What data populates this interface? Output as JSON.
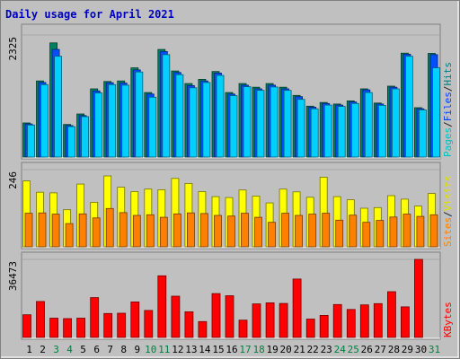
{
  "chart_data": {
    "type": "bar",
    "title": "Daily usage for April 2021",
    "days": [
      "1",
      "2",
      "3",
      "4",
      "5",
      "6",
      "7",
      "8",
      "9",
      "10",
      "11",
      "12",
      "13",
      "14",
      "15",
      "16",
      "17",
      "18",
      "19",
      "20",
      "21",
      "22",
      "23",
      "24",
      "25",
      "26",
      "27",
      "28",
      "29",
      "30",
      "31"
    ],
    "weekend_days": [
      "3",
      "4",
      "10",
      "11",
      "17",
      "18",
      "24",
      "25",
      "31"
    ],
    "panels": [
      {
        "id": "hits-panel",
        "ytick": "2325",
        "ymax": 2325,
        "legend": [
          {
            "label": "Pages",
            "color": "#00c0c0"
          },
          {
            "label": "/",
            "color": "#202020"
          },
          {
            "label": "Files",
            "color": "#0040ff"
          },
          {
            "label": "/",
            "color": "#202020"
          },
          {
            "label": "Hits",
            "color": "#008080"
          }
        ],
        "series": [
          {
            "name": "Hits",
            "color": "#008060",
            "values": [
              650,
              1450,
              2175,
              620,
              820,
              1300,
              1440,
              1450,
              1700,
              1230,
              2050,
              1640,
              1400,
              1480,
              1630,
              1230,
              1400,
              1330,
              1400,
              1330,
              1175,
              970,
              1040,
              1010,
              1070,
              1300,
              1030,
              1350,
              1980,
              940,
              1975
            ]
          },
          {
            "name": "Files",
            "color": "#0050ff",
            "values": [
              630,
              1420,
              2050,
              600,
              790,
              1260,
              1415,
              1410,
              1660,
              1200,
              2010,
              1610,
              1360,
              1450,
              1600,
              1200,
              1370,
              1300,
              1370,
              1300,
              1150,
              950,
              1020,
              990,
              1050,
              1280,
              1010,
              1330,
              1960,
              920,
              1950
            ]
          },
          {
            "name": "Pages",
            "color": "#00d0ff",
            "values": [
              610,
              1380,
              1920,
              580,
              770,
              1220,
              1380,
              1370,
              1620,
              1140,
              1950,
              1570,
              1320,
              1420,
              1555,
              1170,
              1340,
              1270,
              1335,
              1270,
              1100,
              920,
              990,
              965,
              1020,
              1230,
              985,
              1300,
              1920,
              900,
              1700
            ]
          }
        ]
      },
      {
        "id": "visits-panel",
        "ytick": "246",
        "ymax": 246,
        "legend": [
          {
            "label": "Sites",
            "color": "#ff8000"
          },
          {
            "label": "/",
            "color": "#202020"
          },
          {
            "label": "Visits",
            "color": "#e0e000"
          }
        ],
        "series": [
          {
            "name": "Visits",
            "color": "#ffff00",
            "values": [
              210,
              174,
              172,
              118,
              200,
              142,
              226,
              190,
              176,
              184,
              182,
              218,
              202,
              176,
              160,
              157,
              181,
              162,
              140,
              184,
              175,
              158,
              222,
              160,
              150,
              123,
              125,
              163,
              152,
              130,
              170
            ]
          },
          {
            "name": "Sites",
            "color": "#ff8000",
            "values": [
              107,
              108,
              104,
              74,
              105,
              92,
              122,
              109,
              100,
              102,
              94,
              105,
              108,
              106,
              100,
              98,
              107,
              94,
              78,
              107,
              100,
              104,
              107,
              85,
              101,
              78,
              84,
              95,
              104,
              97,
              102
            ]
          }
        ]
      },
      {
        "id": "kbytes-panel",
        "ytick": "36473",
        "ymax": 36473,
        "legend": [
          {
            "label": "KBytes",
            "color": "#ff0000"
          }
        ],
        "series": [
          {
            "name": "KBytes",
            "color": "#ff0000",
            "values": [
              10600,
              16800,
              9000,
              8800,
              9000,
              18600,
              11200,
              11300,
              16600,
              12600,
              28800,
              19300,
              12000,
              7400,
              20500,
              19500,
              8100,
              15700,
              16200,
              15900,
              27300,
              8600,
              10300,
              15400,
              13100,
              15200,
              15800,
              21400,
              14300,
              36473,
              0
            ]
          }
        ]
      }
    ]
  }
}
